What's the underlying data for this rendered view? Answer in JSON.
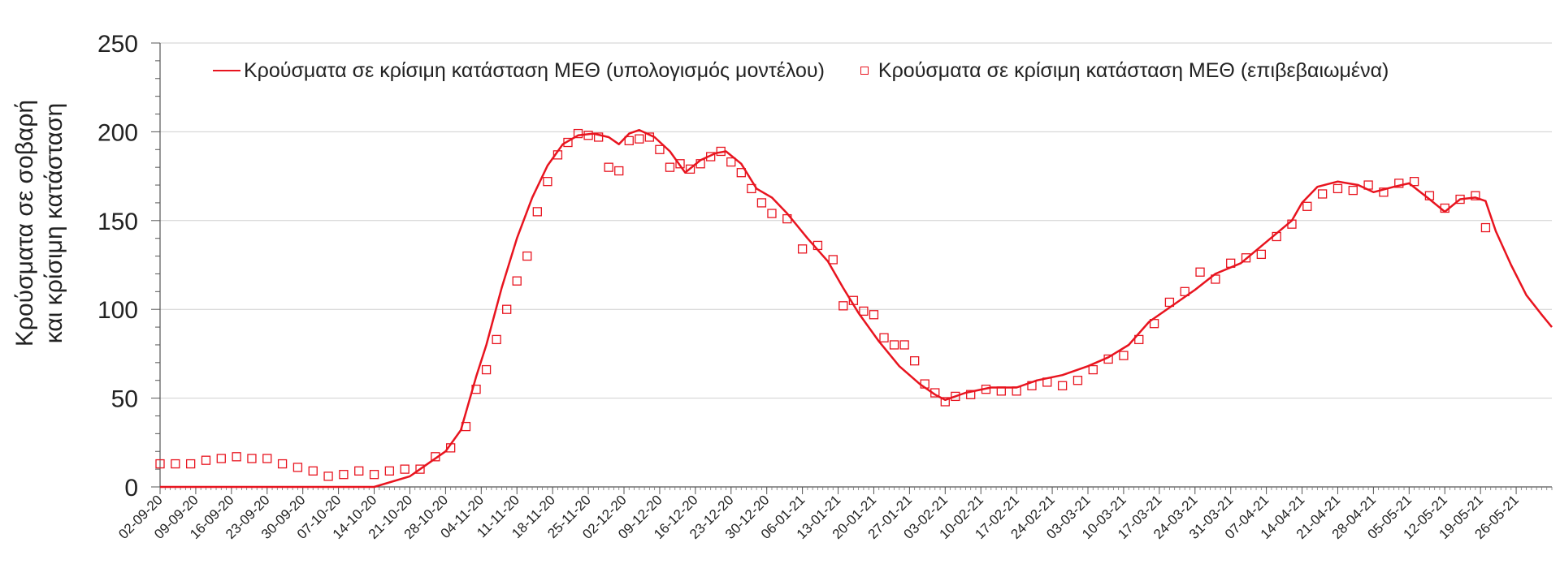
{
  "chart_data": {
    "type": "line",
    "ylabel": "Κρούσματα σε σοβαρή και κρίσιμη κατάσταση",
    "ylabel_lines": [
      "Κρούσματα σε σοβαρή",
      "και κρίσιμη κατάσταση"
    ],
    "ylim": [
      0,
      250
    ],
    "yticks": [
      0,
      50,
      100,
      150,
      200,
      250
    ],
    "x_range": [
      "2020-09-02",
      "2021-06-02"
    ],
    "xtick_labels": [
      "02-09-20",
      "09-09-20",
      "16-09-20",
      "23-09-20",
      "30-09-20",
      "07-10-20",
      "14-10-20",
      "21-10-20",
      "28-10-20",
      "04-11-20",
      "11-11-20",
      "18-11-20",
      "25-11-20",
      "02-12-20",
      "09-12-20",
      "16-12-20",
      "23-12-20",
      "30-12-20",
      "06-01-21",
      "13-01-21",
      "20-01-21",
      "27-01-21",
      "03-02-21",
      "10-02-21",
      "17-02-21",
      "24-02-21",
      "03-03-21",
      "10-03-21",
      "17-03-21",
      "24-03-21",
      "31-03-21",
      "07-04-21",
      "14-04-21",
      "21-04-21",
      "28-04-21",
      "05-05-21",
      "12-05-21",
      "19-05-21",
      "26-05-21"
    ],
    "grid": true,
    "legend_position": "top",
    "series": [
      {
        "name": "Κρούσματα σε κρίσιμη κατάσταση ΜΕΘ (υπολογισμός μοντέλου)",
        "style": "line",
        "color": "#e8141f",
        "points": [
          [
            "2020-09-02",
            0
          ],
          [
            "2020-10-14",
            0
          ],
          [
            "2020-10-21",
            6
          ],
          [
            "2020-10-24",
            12
          ],
          [
            "2020-10-28",
            20
          ],
          [
            "2020-10-31",
            32
          ],
          [
            "2020-11-03",
            62
          ],
          [
            "2020-11-05",
            80
          ],
          [
            "2020-11-08",
            112
          ],
          [
            "2020-11-11",
            140
          ],
          [
            "2020-11-14",
            163
          ],
          [
            "2020-11-17",
            181
          ],
          [
            "2020-11-20",
            193
          ],
          [
            "2020-11-23",
            198
          ],
          [
            "2020-11-26",
            199
          ],
          [
            "2020-11-29",
            197
          ],
          [
            "2020-12-01",
            193
          ],
          [
            "2020-12-03",
            199
          ],
          [
            "2020-12-05",
            201
          ],
          [
            "2020-12-08",
            197
          ],
          [
            "2020-12-11",
            189
          ],
          [
            "2020-12-14",
            177
          ],
          [
            "2020-12-17",
            184
          ],
          [
            "2020-12-20",
            188
          ],
          [
            "2020-12-22",
            189
          ],
          [
            "2020-12-25",
            182
          ],
          [
            "2020-12-28",
            168
          ],
          [
            "2020-12-31",
            163
          ],
          [
            "2021-01-03",
            154
          ],
          [
            "2021-01-07",
            140
          ],
          [
            "2021-01-11",
            127
          ],
          [
            "2021-01-14",
            112
          ],
          [
            "2021-01-17",
            98
          ],
          [
            "2021-01-21",
            82
          ],
          [
            "2021-01-25",
            68
          ],
          [
            "2021-01-29",
            58
          ],
          [
            "2021-02-01",
            52
          ],
          [
            "2021-02-03",
            49
          ],
          [
            "2021-02-07",
            53
          ],
          [
            "2021-02-12",
            56
          ],
          [
            "2021-02-17",
            56
          ],
          [
            "2021-02-21",
            60
          ],
          [
            "2021-02-26",
            63
          ],
          [
            "2021-03-03",
            68
          ],
          [
            "2021-03-07",
            73
          ],
          [
            "2021-03-11",
            80
          ],
          [
            "2021-03-15",
            93
          ],
          [
            "2021-03-19",
            101
          ],
          [
            "2021-03-24",
            111
          ],
          [
            "2021-03-28",
            120
          ],
          [
            "2021-04-02",
            126
          ],
          [
            "2021-04-07",
            138
          ],
          [
            "2021-04-12",
            150
          ],
          [
            "2021-04-14",
            160
          ],
          [
            "2021-04-17",
            169
          ],
          [
            "2021-04-21",
            172
          ],
          [
            "2021-04-25",
            170
          ],
          [
            "2021-04-28",
            166
          ],
          [
            "2021-05-02",
            169
          ],
          [
            "2021-05-05",
            171
          ],
          [
            "2021-05-09",
            162
          ],
          [
            "2021-05-12",
            155
          ],
          [
            "2021-05-15",
            162
          ],
          [
            "2021-05-18",
            163
          ],
          [
            "2021-05-20",
            161
          ],
          [
            "2021-05-22",
            144
          ],
          [
            "2021-05-25",
            125
          ],
          [
            "2021-05-28",
            108
          ],
          [
            "2021-05-31",
            97
          ],
          [
            "2021-06-02",
            90
          ]
        ]
      },
      {
        "name": "Κρούσματα σε κρίσιμη κατάσταση ΜΕΘ (επιβεβαιωμένα)",
        "style": "marker",
        "marker": "square",
        "color": "#e8141f",
        "points": [
          [
            "2020-09-02",
            13
          ],
          [
            "2020-09-05",
            13
          ],
          [
            "2020-09-08",
            13
          ],
          [
            "2020-09-11",
            15
          ],
          [
            "2020-09-14",
            16
          ],
          [
            "2020-09-17",
            17
          ],
          [
            "2020-09-20",
            16
          ],
          [
            "2020-09-23",
            16
          ],
          [
            "2020-09-26",
            13
          ],
          [
            "2020-09-29",
            11
          ],
          [
            "2020-10-02",
            9
          ],
          [
            "2020-10-05",
            6
          ],
          [
            "2020-10-08",
            7
          ],
          [
            "2020-10-11",
            9
          ],
          [
            "2020-10-14",
            7
          ],
          [
            "2020-10-17",
            9
          ],
          [
            "2020-10-20",
            10
          ],
          [
            "2020-10-23",
            10
          ],
          [
            "2020-10-26",
            17
          ],
          [
            "2020-10-29",
            22
          ],
          [
            "2020-11-01",
            34
          ],
          [
            "2020-11-03",
            55
          ],
          [
            "2020-11-05",
            66
          ],
          [
            "2020-11-07",
            83
          ],
          [
            "2020-11-09",
            100
          ],
          [
            "2020-11-11",
            116
          ],
          [
            "2020-11-13",
            130
          ],
          [
            "2020-11-15",
            155
          ],
          [
            "2020-11-17",
            172
          ],
          [
            "2020-11-19",
            187
          ],
          [
            "2020-11-21",
            194
          ],
          [
            "2020-11-23",
            199
          ],
          [
            "2020-11-25",
            198
          ],
          [
            "2020-11-27",
            197
          ],
          [
            "2020-11-29",
            180
          ],
          [
            "2020-12-01",
            178
          ],
          [
            "2020-12-03",
            195
          ],
          [
            "2020-12-05",
            196
          ],
          [
            "2020-12-07",
            197
          ],
          [
            "2020-12-09",
            190
          ],
          [
            "2020-12-11",
            180
          ],
          [
            "2020-12-13",
            182
          ],
          [
            "2020-12-15",
            179
          ],
          [
            "2020-12-17",
            182
          ],
          [
            "2020-12-19",
            186
          ],
          [
            "2020-12-21",
            189
          ],
          [
            "2020-12-23",
            183
          ],
          [
            "2020-12-25",
            177
          ],
          [
            "2020-12-27",
            168
          ],
          [
            "2020-12-29",
            160
          ],
          [
            "2020-12-31",
            154
          ],
          [
            "2021-01-03",
            151
          ],
          [
            "2021-01-06",
            134
          ],
          [
            "2021-01-09",
            136
          ],
          [
            "2021-01-12",
            128
          ],
          [
            "2021-01-14",
            102
          ],
          [
            "2021-01-16",
            105
          ],
          [
            "2021-01-18",
            99
          ],
          [
            "2021-01-20",
            97
          ],
          [
            "2021-01-22",
            84
          ],
          [
            "2021-01-24",
            80
          ],
          [
            "2021-01-26",
            80
          ],
          [
            "2021-01-28",
            71
          ],
          [
            "2021-01-30",
            58
          ],
          [
            "2021-02-01",
            53
          ],
          [
            "2021-02-03",
            48
          ],
          [
            "2021-02-05",
            51
          ],
          [
            "2021-02-08",
            52
          ],
          [
            "2021-02-11",
            55
          ],
          [
            "2021-02-14",
            54
          ],
          [
            "2021-02-17",
            54
          ],
          [
            "2021-02-20",
            57
          ],
          [
            "2021-02-23",
            59
          ],
          [
            "2021-02-26",
            57
          ],
          [
            "2021-03-01",
            60
          ],
          [
            "2021-03-04",
            66
          ],
          [
            "2021-03-07",
            72
          ],
          [
            "2021-03-10",
            74
          ],
          [
            "2021-03-13",
            83
          ],
          [
            "2021-03-16",
            92
          ],
          [
            "2021-03-19",
            104
          ],
          [
            "2021-03-22",
            110
          ],
          [
            "2021-03-25",
            121
          ],
          [
            "2021-03-28",
            117
          ],
          [
            "2021-03-31",
            126
          ],
          [
            "2021-04-03",
            129
          ],
          [
            "2021-04-06",
            131
          ],
          [
            "2021-04-09",
            141
          ],
          [
            "2021-04-12",
            148
          ],
          [
            "2021-04-15",
            158
          ],
          [
            "2021-04-18",
            165
          ],
          [
            "2021-04-21",
            168
          ],
          [
            "2021-04-24",
            167
          ],
          [
            "2021-04-27",
            170
          ],
          [
            "2021-04-30",
            166
          ],
          [
            "2021-05-03",
            171
          ],
          [
            "2021-05-06",
            172
          ],
          [
            "2021-05-09",
            164
          ],
          [
            "2021-05-12",
            157
          ],
          [
            "2021-05-15",
            162
          ],
          [
            "2021-05-18",
            164
          ],
          [
            "2021-05-20",
            146
          ]
        ]
      }
    ]
  }
}
